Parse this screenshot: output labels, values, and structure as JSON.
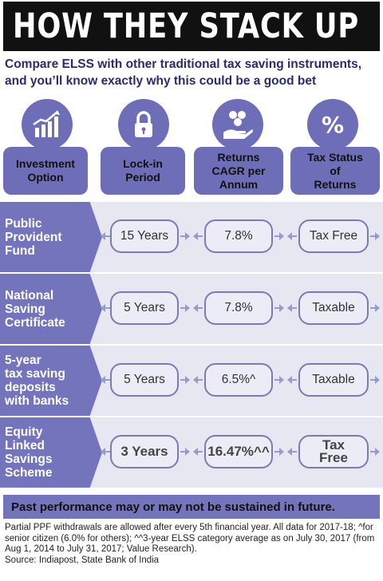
{
  "title": "HOW THEY STACK UP",
  "subtitle": "Compare ELSS with other traditional tax saving instruments, and you’ll know exactly why this could be a good bet",
  "headers": [
    {
      "label": "Investment\nOption",
      "icon": "growth-chart-icon"
    },
    {
      "label": "Lock-in\nPeriod",
      "icon": "lock-icon"
    },
    {
      "label": "Returns\nCAGR per\nAnnum",
      "icon": "money-hand-icon"
    },
    {
      "label": "Tax Status\nof\nReturns",
      "icon": "percent-icon"
    }
  ],
  "rows": [
    {
      "option": "Public\nProvident\nFund",
      "lockin": "15 Years",
      "returns": "7.8%",
      "tax": "Tax Free"
    },
    {
      "option": "National\nSaving\nCertificate",
      "lockin": "5 Years",
      "returns": "7.8%",
      "tax": "Taxable"
    },
    {
      "option": "5-year\ntax saving\ndeposits\nwith banks",
      "lockin": "5 Years",
      "returns": "6.5%^",
      "tax": "Taxable"
    },
    {
      "option": "Equity\nLinked\nSavings\nScheme",
      "lockin": "3 Years",
      "returns": "16.47%^^",
      "tax": "Tax\nFree"
    }
  ],
  "disclaimer": "Past performance may or may not be sustained in future.",
  "notes": "Partial PPF withdrawals are allowed after every 5th financial year. All data for 2017-18; ^for senior citizen (6.0% for others); ^^3-year ELSS category average as on July 30, 2017 (from Aug 1, 2014 to July 31, 2017; Value Research).",
  "source": "Source: Indiapost, State Bank of India",
  "colors": {
    "accent": "#7474bd",
    "stripe": "#e7e7f2",
    "title_bg": "#111111",
    "subtitle": "#2b2b6b"
  }
}
